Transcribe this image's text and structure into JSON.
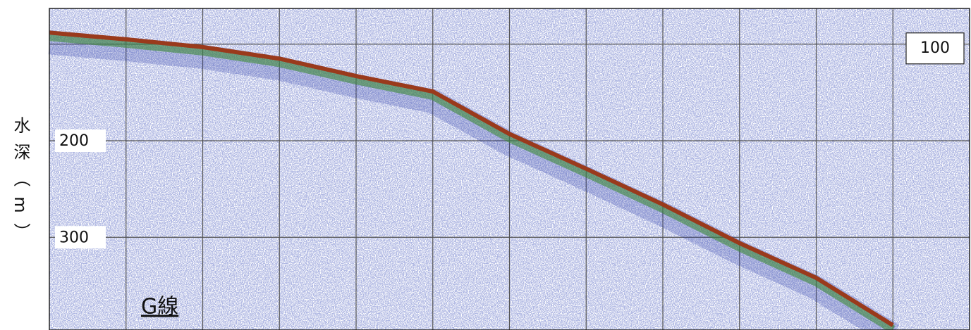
{
  "chart_data": {
    "type": "echogram",
    "y_title": "水深（m）",
    "annotation": "G線",
    "categories": [
      null,
      null,
      null,
      null,
      null,
      null,
      null,
      null,
      null,
      null,
      null,
      null,
      null
    ],
    "values": [
      88,
      95,
      103,
      115,
      133,
      149,
      193,
      229,
      266,
      306,
      342,
      391,
      null
    ],
    "color": "#9a3a1c",
    "ylim": [
      63,
      396
    ],
    "y_inverted": true,
    "yticks": [
      100,
      200,
      300
    ],
    "grid": true
  }
}
